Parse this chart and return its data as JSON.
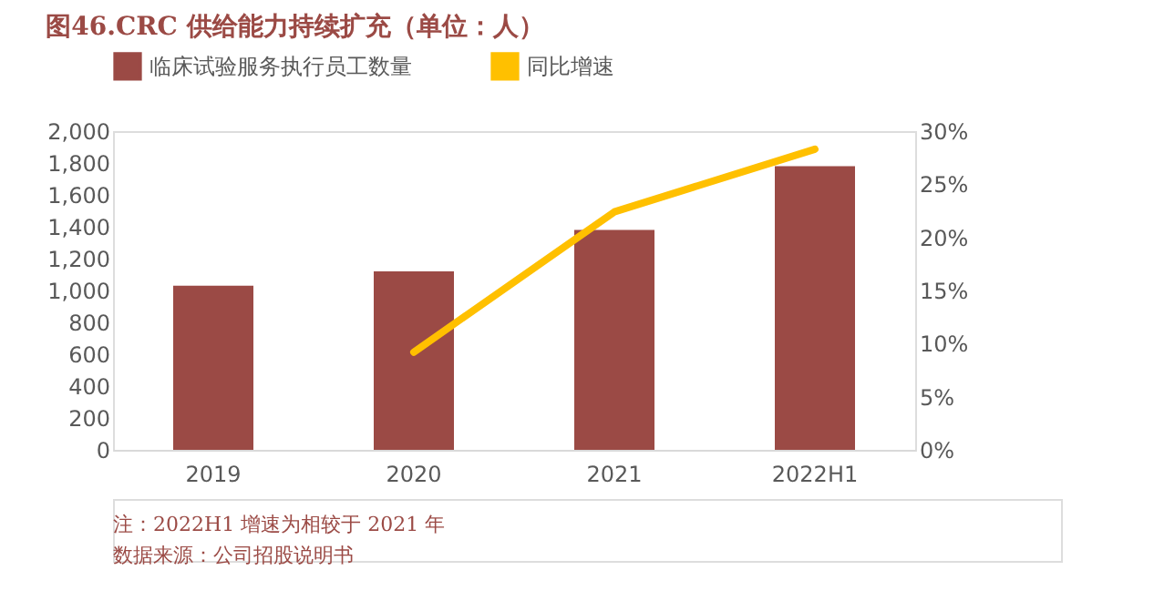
{
  "chart_data": {
    "type": "bar",
    "title": "图46.CRC 供给能力持续扩充（单位：人）",
    "categories": [
      "2019",
      "2020",
      "2021",
      "2022H1"
    ],
    "series": [
      {
        "name": "临床试验服务执行员工数量",
        "color": "#9b4a45",
        "values": [
          1030,
          1120,
          1380,
          1780
        ]
      },
      {
        "name": "同比增速",
        "color": "#ffc000",
        "type": "line",
        "axis": "y2",
        "values": [
          null,
          9.2,
          22.4,
          28.3
        ]
      }
    ],
    "ylim": [
      0,
      2000
    ],
    "yticks": [
      {
        "value": 0,
        "label": "0"
      },
      {
        "value": 200,
        "label": "200"
      },
      {
        "value": 400,
        "label": "400"
      },
      {
        "value": 600,
        "label": "600"
      },
      {
        "value": 800,
        "label": "800"
      },
      {
        "value": 1000,
        "label": "1,000"
      },
      {
        "value": 1200,
        "label": "1,200"
      },
      {
        "value": 1400,
        "label": "1,400"
      },
      {
        "value": 1600,
        "label": "1,600"
      },
      {
        "value": 1800,
        "label": "1,800"
      },
      {
        "value": 2000,
        "label": "2,000"
      }
    ],
    "y2lim": [
      0,
      30
    ],
    "y2ticks": [
      {
        "value": 0,
        "label": "0%"
      },
      {
        "value": 5,
        "label": "5%"
      },
      {
        "value": 10,
        "label": "10%"
      },
      {
        "value": 15,
        "label": "15%"
      },
      {
        "value": 20,
        "label": "20%"
      },
      {
        "value": 25,
        "label": "25%"
      },
      {
        "value": 30,
        "label": "30%"
      }
    ],
    "grid": false,
    "legend": "top",
    "marker": "none",
    "line_style": "solid",
    "annotations": [
      "注：2022H1 增速为相较于 2021 年",
      "数据来源：公司招股说明书"
    ]
  }
}
